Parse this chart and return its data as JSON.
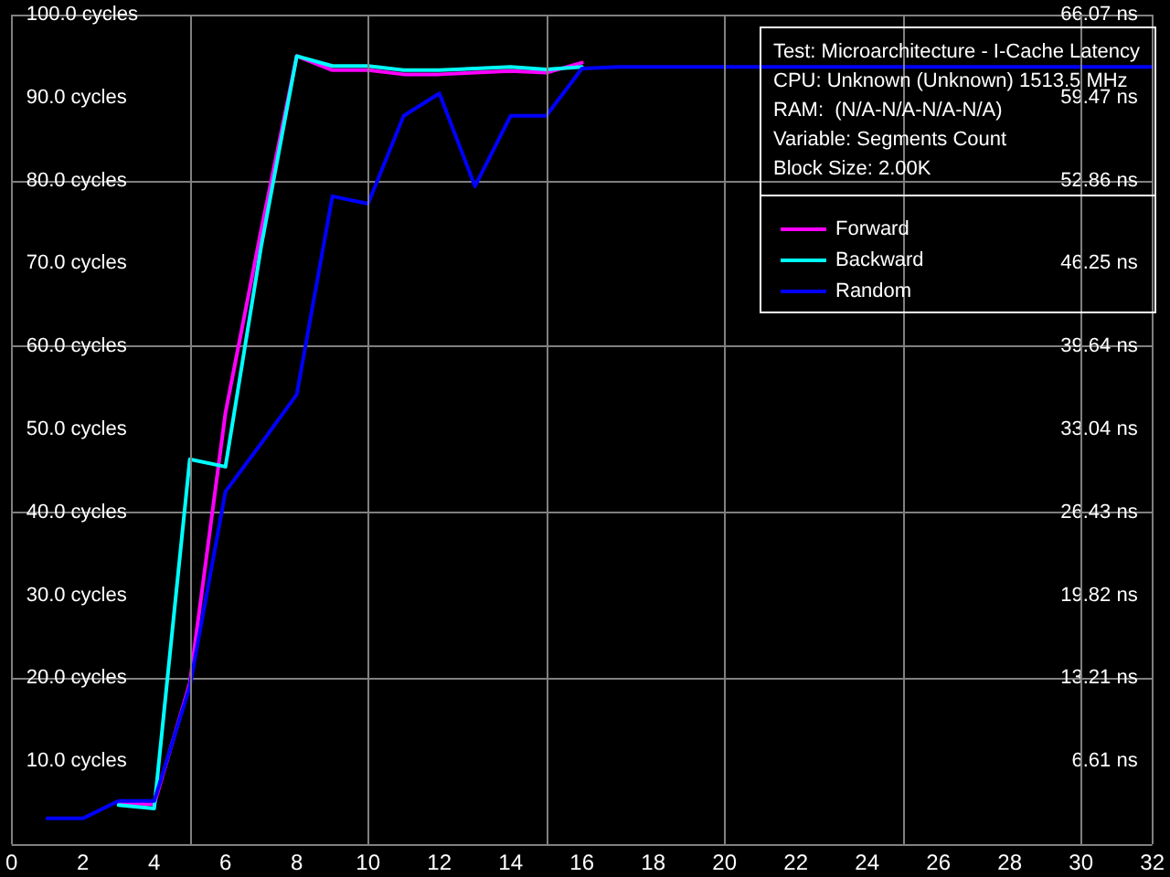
{
  "chart_data": {
    "type": "line",
    "title": "Test: Microarchitecture - I-Cache Latency",
    "annotations": [
      "CPU: Unknown (Unknown) 1513.5 MHz",
      "RAM:  (N/A-N/A-N/A-N/A)",
      "Variable: Segments Count",
      "Block Size: 2.00K"
    ],
    "x": [
      1,
      2,
      3,
      4,
      5,
      6,
      7,
      8,
      9,
      10,
      11,
      12,
      13,
      14,
      15,
      16,
      17,
      18,
      19,
      20,
      21,
      22,
      23,
      24,
      25,
      26,
      27,
      28,
      29,
      30,
      31,
      32
    ],
    "series": [
      {
        "name": "Forward",
        "color": "#ff00ff",
        "values": [
          null,
          null,
          5.0,
          4.8,
          19.4,
          52,
          74,
          95,
          93.3,
          93.3,
          92.8,
          92.8,
          93.0,
          93.2,
          93.0,
          94.2,
          null,
          null,
          null,
          null,
          null,
          null,
          null,
          null,
          null,
          null,
          null,
          null,
          null,
          null,
          null,
          null
        ]
      },
      {
        "name": "Backward",
        "color": "#00ffff",
        "values": [
          null,
          null,
          4.7,
          4.3,
          46.4,
          45.5,
          72,
          95,
          93.8,
          93.8,
          93.3,
          93.3,
          93.5,
          93.7,
          93.4,
          93.7,
          null,
          null,
          null,
          null,
          null,
          null,
          null,
          null,
          null,
          null,
          null,
          null,
          null,
          null,
          null,
          null
        ]
      },
      {
        "name": "Random",
        "color": "#0000ff",
        "values": [
          3.1,
          3.1,
          5.2,
          5.2,
          19,
          42.5,
          48.3,
          54.2,
          78.1,
          77.2,
          87.8,
          90.5,
          79.3,
          87.8,
          87.8,
          93.5,
          93.7,
          93.7,
          93.7,
          93.7,
          93.7,
          93.7,
          93.7,
          93.7,
          93.7,
          93.7,
          93.7,
          93.7,
          93.7,
          93.7,
          93.7,
          93.7
        ]
      }
    ],
    "xlim": [
      0,
      32
    ],
    "xticks": [
      0,
      2,
      4,
      6,
      8,
      10,
      12,
      14,
      16,
      18,
      20,
      22,
      24,
      26,
      28,
      30,
      32
    ],
    "ylim": [
      0,
      100
    ],
    "yticks": [
      {
        "value": 10,
        "label": "10.0 cycles"
      },
      {
        "value": 20,
        "label": "20.0 cycles"
      },
      {
        "value": 30,
        "label": "30.0 cycles"
      },
      {
        "value": 40,
        "label": "40.0 cycles"
      },
      {
        "value": 50,
        "label": "50.0 cycles"
      },
      {
        "value": 60,
        "label": "60.0 cycles"
      },
      {
        "value": 70,
        "label": "70.0 cycles"
      },
      {
        "value": 80,
        "label": "80.0 cycles"
      },
      {
        "value": 90,
        "label": "90.0 cycles"
      },
      {
        "value": 100,
        "label": "100.0 cycles"
      }
    ],
    "y2lim": [
      0,
      66.07
    ],
    "y2ticks": [
      {
        "value": 6.61,
        "label": "6.61 ns"
      },
      {
        "value": 13.21,
        "label": "13.21 ns"
      },
      {
        "value": 19.82,
        "label": "19.82 ns"
      },
      {
        "value": 26.43,
        "label": "26.43 ns"
      },
      {
        "value": 33.04,
        "label": "33.04 ns"
      },
      {
        "value": 39.64,
        "label": "39.64 ns"
      },
      {
        "value": 46.25,
        "label": "46.25 ns"
      },
      {
        "value": 52.86,
        "label": "52.86 ns"
      },
      {
        "value": 59.47,
        "label": "59.47 ns"
      },
      {
        "value": 66.07,
        "label": "66.07 ns"
      }
    ],
    "grid": true,
    "legend": "top right",
    "marker": "none",
    "line_style": "solid"
  }
}
